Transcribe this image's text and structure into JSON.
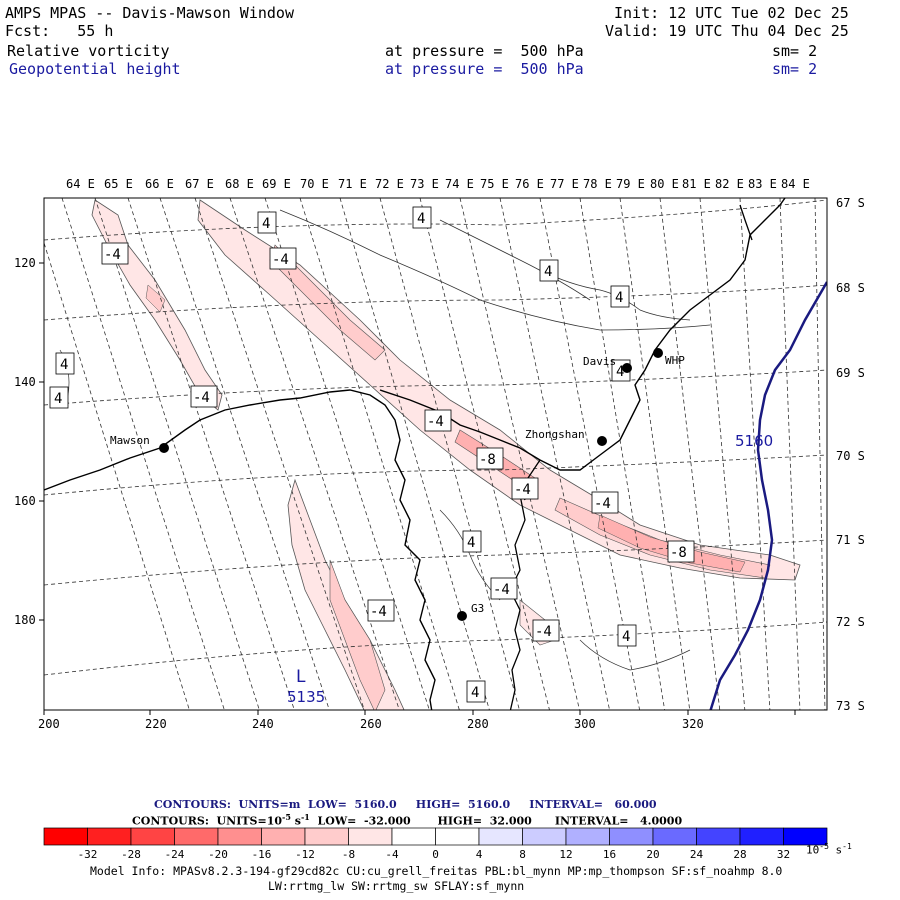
{
  "header": {
    "title": "AMPS MPAS -- Davis-Mawson Window",
    "init": "Init: 12 UTC Tue 02 Dec 25",
    "fcst_label": "Fcst:",
    "fcst_value": "55 h",
    "valid": "Valid: 19 UTC Thu 04 Dec 25",
    "field1": {
      "name": "Relative vorticity",
      "level": "at pressure =",
      "level_val": "500 hPa",
      "smooth": "sm= 2"
    },
    "field2": {
      "name": "Geopotential height",
      "level": "at pressure =",
      "level_val": "500 hPa",
      "smooth": "sm= 2"
    }
  },
  "map": {
    "lon_labels": [
      "64 E",
      "65 E",
      "66 E",
      "67 E",
      "68 E",
      "69 E",
      "70 E",
      "71 E",
      "72 E",
      "73 E",
      "74 E",
      "75 E",
      "76 E",
      "77 E",
      "78 E",
      "79 E",
      "80 E",
      "81 E",
      "82 E",
      "83 E",
      "84 E"
    ],
    "lat_labels": [
      "67 S",
      "68 S",
      "69 S",
      "70 S",
      "71 S",
      "72 S",
      "73 S"
    ],
    "x_ticks": [
      "200",
      "220",
      "240",
      "260",
      "280",
      "300",
      "320"
    ],
    "y_ticks": [
      "120",
      "140",
      "160",
      "180"
    ],
    "stations": [
      {
        "name": "Mawson"
      },
      {
        "name": "Davis"
      },
      {
        "name": "WHP"
      },
      {
        "name": "Zhongshan"
      },
      {
        "name": "G3"
      }
    ],
    "contour_labels": [
      "4",
      "-4",
      "4",
      "-4",
      "4",
      "4",
      "4",
      "4",
      "-4",
      "4",
      "-4",
      "-8",
      "-4",
      "-4",
      "-8",
      "4",
      "-4",
      "-4",
      "-4",
      "4",
      "4",
      "4",
      "4"
    ],
    "height_contour": "5160",
    "low_label": "L",
    "low_value": "5135"
  },
  "legend": {
    "line1_a": "CONTOURS:  UNITS=m  LOW=  5160.0",
    "line1_b": "HIGH=  5160.0",
    "line1_c": "INTERVAL=   60.000",
    "line2_a": "CONTOURS:  UNITS=10",
    "line2_exp": "-5",
    "line2_s": " s",
    "line2_exp2": "-1",
    "line2_b": "LOW=  -32.000",
    "line2_c": "HIGH=  32.000",
    "line2_d": "INTERVAL=   4.0000",
    "colors": [
      "#ff0000",
      "#ff2020",
      "#ff4444",
      "#ff6a6a",
      "#ff8f8f",
      "#ffb0b0",
      "#ffcccc",
      "#ffe6e6",
      "#ffffff",
      "#ffffff",
      "#e6e6ff",
      "#ccccff",
      "#b0b0ff",
      "#8f8fff",
      "#6a6aff",
      "#4444ff",
      "#2020ff",
      "#0000ff"
    ],
    "tick_labels": [
      "-32",
      "-28",
      "-24",
      "-20",
      "-16",
      "-12",
      "-8",
      "-4",
      "0",
      "4",
      "8",
      "12",
      "16",
      "20",
      "24",
      "28",
      "32"
    ],
    "unit": "10",
    "unit_exp": "-5",
    "unit_s": " s",
    "unit_exp2": "-1"
  },
  "model_info": {
    "line1": "Model Info: MPASv8.2.3-194-gf29cd82c CU:cu_grell_freitas PBL:bl_mynn MP:mp_thompson SF:sf_noahmp 8.0",
    "line2": "LW:rrtmg_lw SW:rrtmg_sw SFLAY:sf_mynn"
  }
}
